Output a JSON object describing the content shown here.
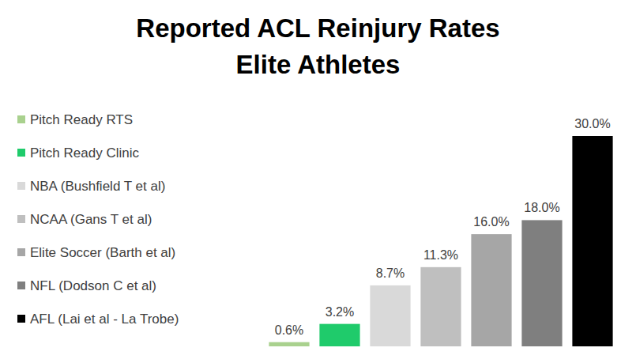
{
  "chart_data": {
    "type": "bar",
    "title": "Reported ACL Reinjury Rates\nElite Athletes",
    "categories": [
      "Pitch Ready RTS",
      "Pitch Ready Clinic",
      "NBA (Bushfield T et al)",
      "NCAA (Gans T et al)",
      "Elite Soccer (Barth et al)",
      "NFL (Dodson C et al)",
      "AFL (Lai et al - La Trobe)"
    ],
    "values": [
      0.6,
      3.2,
      8.7,
      11.3,
      16.0,
      18.0,
      30.0
    ],
    "value_labels": [
      "0.6%",
      "3.2%",
      "8.7%",
      "11.3%",
      "16.0%",
      "18.0%",
      "30.0%"
    ],
    "colors": [
      "#a9d18e",
      "#1fcb6b",
      "#d9d9d9",
      "#bfbfbf",
      "#a6a6a6",
      "#7f7f7f",
      "#000000"
    ],
    "ylim": [
      0,
      30
    ],
    "data_labels": true,
    "tick_labels": false,
    "legend": "left"
  }
}
